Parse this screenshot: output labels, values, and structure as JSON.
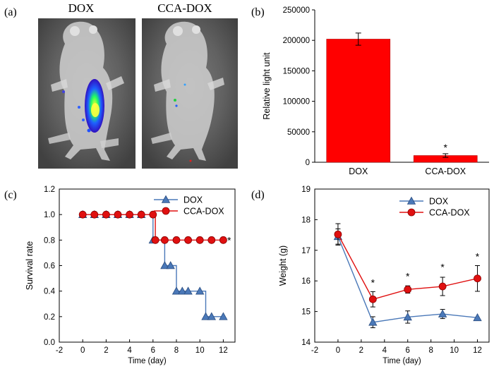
{
  "panels": {
    "a": {
      "label": "(a)",
      "images": [
        {
          "caption": "DOX"
        },
        {
          "caption": "CCA-DOX"
        }
      ]
    }
  },
  "chart_data": [
    {
      "panel": "(b)",
      "type": "bar",
      "title": "",
      "xlabel": "",
      "ylabel": "Relative light unit",
      "categories": [
        "DOX",
        "CCA-DOX"
      ],
      "values": [
        202000,
        11000
      ],
      "errors": [
        10000,
        3000
      ],
      "significance": [
        "",
        "*"
      ],
      "ylim": [
        0,
        250000
      ],
      "yticks": [
        "0",
        "50000",
        "100000",
        "150000",
        "200000",
        "250000"
      ],
      "bar_color": "#ff0000",
      "grid": false
    },
    {
      "panel": "(c)",
      "type": "line",
      "step": true,
      "xlabel": "Time (day)",
      "ylabel": "Survival rate",
      "xlim": [
        -2,
        13
      ],
      "ylim": [
        0.0,
        1.2
      ],
      "xticks": [
        "-2",
        "0",
        "2",
        "4",
        "6",
        "8",
        "10",
        "12"
      ],
      "yticks": [
        "0.0",
        "0.2",
        "0.4",
        "0.6",
        "0.8",
        "1.0",
        "1.2"
      ],
      "legend": "top-right",
      "series": [
        {
          "name": "DOX",
          "marker": "triangle",
          "color": "#4a78b8",
          "x": [
            0,
            1,
            2,
            3,
            4,
            5,
            6,
            7,
            7.5,
            8,
            8.5,
            9,
            10,
            10.5,
            11,
            12
          ],
          "y": [
            1.0,
            1.0,
            1.0,
            1.0,
            1.0,
            1.0,
            0.8,
            0.6,
            0.6,
            0.4,
            0.4,
            0.4,
            0.4,
            0.2,
            0.2,
            0.2
          ]
        },
        {
          "name": "CCA-DOX",
          "marker": "circle",
          "color": "#e01010",
          "x": [
            0,
            1,
            2,
            3,
            4,
            5,
            6,
            6.2,
            7,
            8,
            9,
            10,
            11,
            12
          ],
          "y": [
            1.0,
            1.0,
            1.0,
            1.0,
            1.0,
            1.0,
            1.0,
            0.8,
            0.8,
            0.8,
            0.8,
            0.8,
            0.8,
            0.8
          ]
        }
      ],
      "annotations": [
        {
          "text": "*",
          "x": 12.5,
          "y": 0.8
        }
      ]
    },
    {
      "panel": "(d)",
      "type": "line",
      "xlabel": "Time (day)",
      "ylabel": "Weight (g)",
      "xlim": [
        -2,
        13
      ],
      "ylim": [
        14,
        19
      ],
      "xticks": [
        "-2",
        "0",
        "2",
        "4",
        "6",
        "8",
        "10",
        "12"
      ],
      "yticks": [
        "14",
        "15",
        "16",
        "17",
        "18",
        "19"
      ],
      "legend": "top-right",
      "series": [
        {
          "name": "DOX",
          "marker": "triangle",
          "color": "#4a78b8",
          "x": [
            0,
            3,
            6,
            9,
            12
          ],
          "y": [
            17.45,
            14.65,
            14.82,
            14.92,
            14.8
          ],
          "errors": [
            0.25,
            0.18,
            0.2,
            0.15,
            0.0
          ]
        },
        {
          "name": "CCA-DOX",
          "marker": "circle",
          "color": "#e01010",
          "x": [
            0,
            3,
            6,
            9,
            12
          ],
          "y": [
            17.52,
            15.4,
            15.72,
            15.82,
            16.08
          ],
          "errors": [
            0.35,
            0.25,
            0.12,
            0.3,
            0.42
          ]
        }
      ],
      "annotations": [
        {
          "text": "*",
          "x": 3,
          "y": 15.95
        },
        {
          "text": "*",
          "x": 6,
          "y": 16.15
        },
        {
          "text": "*",
          "x": 9,
          "y": 16.45
        },
        {
          "text": "*",
          "x": 12,
          "y": 16.8
        }
      ]
    }
  ]
}
